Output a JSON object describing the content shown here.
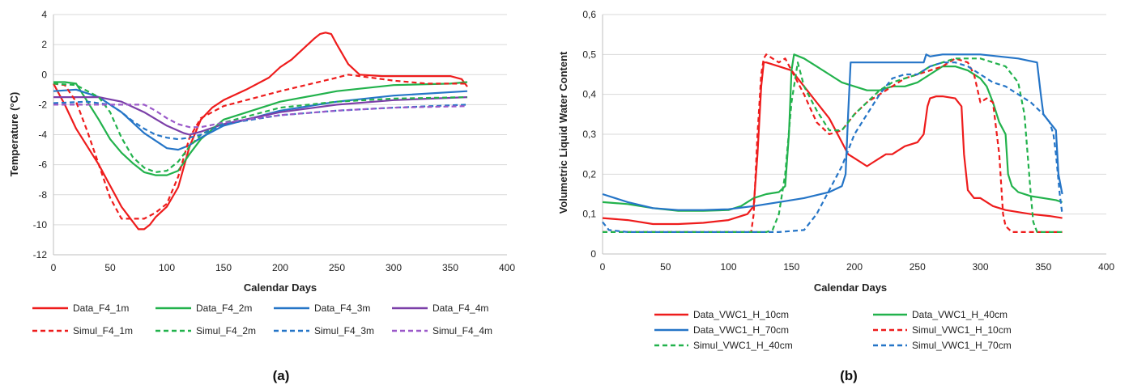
{
  "chart_data": [
    {
      "panel_label": "(a)",
      "type": "line",
      "xlabel": "Calendar Days",
      "ylabel": "Temperature (°C)",
      "xlim": [
        0,
        400
      ],
      "ylim": [
        -12,
        4
      ],
      "xticks": [
        0,
        50,
        100,
        150,
        200,
        250,
        300,
        350,
        400
      ],
      "yticks": [
        -12,
        -10,
        -8,
        -6,
        -4,
        -2,
        0,
        2,
        4
      ],
      "grid": true,
      "legend_position": "bottom",
      "series": [
        {
          "name": "Data_F4_1m",
          "color": "#ee1c1c",
          "dash": false,
          "x": [
            0,
            10,
            20,
            30,
            40,
            50,
            60,
            70,
            75,
            80,
            85,
            90,
            100,
            110,
            120,
            130,
            140,
            150,
            170,
            190,
            200,
            210,
            220,
            230,
            235,
            240,
            245,
            250,
            260,
            270,
            290,
            320,
            350,
            360,
            365
          ],
          "y": [
            -0.6,
            -2,
            -3.6,
            -4.8,
            -6,
            -7.4,
            -8.8,
            -9.8,
            -10.3,
            -10.3,
            -10,
            -9.5,
            -8.8,
            -7.5,
            -4.8,
            -3,
            -2.2,
            -1.7,
            -1,
            -0.2,
            0.5,
            1,
            1.7,
            2.4,
            2.7,
            2.8,
            2.7,
            2,
            0.7,
            0,
            -0.1,
            -0.1,
            -0.1,
            -0.3,
            -0.8
          ]
        },
        {
          "name": "Data_F4_2m",
          "color": "#22b24c",
          "dash": false,
          "x": [
            0,
            10,
            20,
            30,
            40,
            50,
            60,
            70,
            80,
            90,
            100,
            110,
            120,
            130,
            150,
            200,
            250,
            300,
            350,
            365
          ],
          "y": [
            -0.5,
            -0.5,
            -0.6,
            -1.8,
            -3,
            -4.3,
            -5.2,
            -5.9,
            -6.5,
            -6.7,
            -6.7,
            -6.4,
            -5.3,
            -4.3,
            -3,
            -1.8,
            -1.1,
            -0.7,
            -0.6,
            -0.5
          ]
        },
        {
          "name": "Data_F4_3m",
          "color": "#2575c7",
          "dash": false,
          "x": [
            0,
            20,
            40,
            60,
            80,
            100,
            110,
            120,
            130,
            150,
            200,
            250,
            300,
            365
          ],
          "y": [
            -1.1,
            -1,
            -1.5,
            -2.5,
            -3.9,
            -4.9,
            -5,
            -4.7,
            -4.2,
            -3.4,
            -2.4,
            -1.8,
            -1.4,
            -1.1
          ]
        },
        {
          "name": "Data_F4_4m",
          "color": "#7b3fa8",
          "dash": false,
          "x": [
            0,
            40,
            60,
            80,
            100,
            115,
            120,
            130,
            150,
            200,
            250,
            300,
            365
          ],
          "y": [
            -1.5,
            -1.5,
            -1.8,
            -2.5,
            -3.4,
            -3.9,
            -4,
            -3.8,
            -3.3,
            -2.5,
            -2,
            -1.7,
            -1.5
          ]
        },
        {
          "name": "Simul_F4_1m",
          "color": "#ee1c1c",
          "dash": true,
          "x": [
            0,
            10,
            20,
            30,
            40,
            50,
            60,
            70,
            80,
            90,
            100,
            110,
            120,
            130,
            150,
            200,
            250,
            260,
            270,
            300,
            330,
            365
          ],
          "y": [
            -0.6,
            -0.7,
            -1.8,
            -3.8,
            -6,
            -8.2,
            -9.6,
            -9.6,
            -9.6,
            -9.2,
            -8.6,
            -6.8,
            -4.2,
            -2.9,
            -2.1,
            -1.1,
            -0.2,
            0,
            -0.1,
            -0.4,
            -0.6,
            -0.6
          ]
        },
        {
          "name": "Simul_F4_2m",
          "color": "#22b24c",
          "dash": true,
          "x": [
            0,
            20,
            40,
            50,
            60,
            70,
            80,
            90,
            100,
            110,
            120,
            130,
            150,
            200,
            250,
            300,
            365
          ],
          "y": [
            -0.6,
            -0.7,
            -1.5,
            -2.5,
            -4.2,
            -5.5,
            -6.2,
            -6.5,
            -6.4,
            -5.8,
            -4.8,
            -4,
            -3.2,
            -2.2,
            -1.8,
            -1.6,
            -1.5
          ]
        },
        {
          "name": "Simul_F4_3m",
          "color": "#2575c7",
          "dash": true,
          "x": [
            0,
            30,
            50,
            60,
            70,
            80,
            90,
            100,
            110,
            120,
            130,
            150,
            200,
            250,
            300,
            365
          ],
          "y": [
            -1.9,
            -1.8,
            -2,
            -2.5,
            -3.1,
            -3.6,
            -4,
            -4.2,
            -4.3,
            -4.2,
            -4,
            -3.3,
            -2.7,
            -2.4,
            -2.2,
            -2
          ]
        },
        {
          "name": "Simul_F4_4m",
          "color": "#9b59c9",
          "dash": true,
          "x": [
            0,
            40,
            60,
            70,
            80,
            90,
            100,
            110,
            120,
            130,
            150,
            200,
            250,
            300,
            365
          ],
          "y": [
            -2,
            -2,
            -2,
            -2,
            -2,
            -2.4,
            -2.9,
            -3.3,
            -3.5,
            -3.5,
            -3.2,
            -2.7,
            -2.4,
            -2.2,
            -2.1
          ]
        }
      ]
    },
    {
      "panel_label": "(b)",
      "type": "line",
      "xlabel": "Calendar Days",
      "ylabel": "Volumetric Liquid Water Content",
      "xlim": [
        0,
        400
      ],
      "ylim": [
        0,
        0.6
      ],
      "xticks": [
        0,
        50,
        100,
        150,
        200,
        250,
        300,
        350,
        400
      ],
      "yticks": [
        "0",
        "0,1",
        "0,2",
        "0,3",
        "0,4",
        "0,5",
        "0,6"
      ],
      "grid": true,
      "legend_position": "bottom",
      "series": [
        {
          "name": "Data_VWC1_H_10cm",
          "color": "#ee1c1c",
          "dash": false,
          "x": [
            0,
            20,
            40,
            60,
            80,
            100,
            115,
            120,
            123,
            126,
            128,
            130,
            140,
            150,
            160,
            170,
            180,
            190,
            195,
            200,
            210,
            215,
            220,
            225,
            230,
            240,
            250,
            255,
            258,
            260,
            265,
            270,
            280,
            285,
            287,
            290,
            295,
            300,
            310,
            320,
            340,
            355,
            365
          ],
          "y": [
            0.09,
            0.085,
            0.075,
            0.075,
            0.078,
            0.085,
            0.1,
            0.12,
            0.25,
            0.42,
            0.48,
            0.48,
            0.47,
            0.46,
            0.42,
            0.38,
            0.34,
            0.28,
            0.25,
            0.24,
            0.22,
            0.23,
            0.24,
            0.25,
            0.25,
            0.27,
            0.28,
            0.3,
            0.37,
            0.39,
            0.395,
            0.395,
            0.39,
            0.37,
            0.25,
            0.16,
            0.14,
            0.14,
            0.12,
            0.11,
            0.1,
            0.095,
            0.09
          ]
        },
        {
          "name": "Data_VWC1_H_40cm",
          "color": "#22b24c",
          "dash": false,
          "x": [
            0,
            20,
            40,
            60,
            80,
            100,
            110,
            120,
            130,
            140,
            145,
            148,
            150,
            152,
            160,
            170,
            180,
            190,
            200,
            210,
            220,
            230,
            240,
            250,
            260,
            270,
            280,
            290,
            300,
            305,
            310,
            315,
            320,
            322,
            325,
            330,
            340,
            350,
            360,
            365
          ],
          "y": [
            0.13,
            0.125,
            0.115,
            0.108,
            0.108,
            0.11,
            0.12,
            0.14,
            0.15,
            0.155,
            0.17,
            0.3,
            0.46,
            0.5,
            0.49,
            0.47,
            0.45,
            0.43,
            0.42,
            0.41,
            0.41,
            0.42,
            0.42,
            0.43,
            0.45,
            0.47,
            0.47,
            0.46,
            0.44,
            0.42,
            0.38,
            0.33,
            0.3,
            0.2,
            0.17,
            0.155,
            0.145,
            0.14,
            0.135,
            0.13
          ]
        },
        {
          "name": "Data_VWC1_H_70cm",
          "color": "#2575c7",
          "dash": false,
          "x": [
            0,
            20,
            40,
            60,
            80,
            100,
            120,
            140,
            160,
            180,
            190,
            193,
            195,
            197,
            200,
            220,
            240,
            255,
            257,
            260,
            270,
            300,
            330,
            345,
            348,
            350,
            355,
            360,
            362,
            365
          ],
          "y": [
            0.15,
            0.13,
            0.115,
            0.11,
            0.11,
            0.112,
            0.12,
            0.13,
            0.14,
            0.155,
            0.17,
            0.2,
            0.35,
            0.48,
            0.48,
            0.48,
            0.48,
            0.48,
            0.5,
            0.495,
            0.5,
            0.5,
            0.49,
            0.48,
            0.4,
            0.35,
            0.33,
            0.31,
            0.2,
            0.15
          ]
        },
        {
          "name": "Simul_VWC1_H_10cm",
          "color": "#ee1c1c",
          "dash": true,
          "x": [
            0,
            20,
            60,
            100,
            118,
            120,
            123,
            126,
            128,
            130,
            135,
            140,
            145,
            150,
            160,
            170,
            180,
            190,
            200,
            210,
            220,
            230,
            240,
            250,
            260,
            270,
            280,
            290,
            295,
            300,
            305,
            310,
            315,
            318,
            320,
            325,
            330,
            365
          ],
          "y": [
            0.055,
            0.055,
            0.055,
            0.055,
            0.055,
            0.1,
            0.3,
            0.45,
            0.49,
            0.5,
            0.49,
            0.48,
            0.49,
            0.46,
            0.4,
            0.33,
            0.3,
            0.31,
            0.35,
            0.38,
            0.4,
            0.42,
            0.44,
            0.45,
            0.46,
            0.47,
            0.49,
            0.48,
            0.45,
            0.38,
            0.39,
            0.38,
            0.25,
            0.1,
            0.07,
            0.055,
            0.055,
            0.055
          ]
        },
        {
          "name": "Simul_VWC1_H_40cm",
          "color": "#22b24c",
          "dash": true,
          "x": [
            0,
            20,
            60,
            100,
            130,
            135,
            140,
            145,
            150,
            155,
            160,
            170,
            180,
            190,
            200,
            210,
            220,
            230,
            240,
            250,
            260,
            270,
            280,
            290,
            300,
            310,
            320,
            330,
            335,
            340,
            342,
            345,
            365
          ],
          "y": [
            0.055,
            0.055,
            0.055,
            0.055,
            0.055,
            0.06,
            0.1,
            0.2,
            0.38,
            0.48,
            0.42,
            0.36,
            0.31,
            0.31,
            0.35,
            0.38,
            0.41,
            0.43,
            0.44,
            0.45,
            0.47,
            0.48,
            0.49,
            0.49,
            0.49,
            0.48,
            0.47,
            0.43,
            0.35,
            0.15,
            0.08,
            0.055,
            0.055
          ]
        },
        {
          "name": "Simul_VWC1_H_70cm",
          "color": "#2575c7",
          "dash": true,
          "x": [
            0,
            5,
            20,
            60,
            100,
            140,
            160,
            170,
            180,
            190,
            200,
            210,
            220,
            230,
            240,
            250,
            260,
            270,
            280,
            290,
            300,
            310,
            320,
            330,
            340,
            350,
            355,
            358,
            360,
            363,
            365
          ],
          "y": [
            0.08,
            0.06,
            0.055,
            0.055,
            0.055,
            0.055,
            0.06,
            0.1,
            0.16,
            0.22,
            0.3,
            0.35,
            0.4,
            0.44,
            0.45,
            0.45,
            0.47,
            0.48,
            0.48,
            0.47,
            0.45,
            0.43,
            0.42,
            0.4,
            0.38,
            0.35,
            0.33,
            0.3,
            0.25,
            0.15,
            0.1
          ]
        }
      ]
    }
  ]
}
